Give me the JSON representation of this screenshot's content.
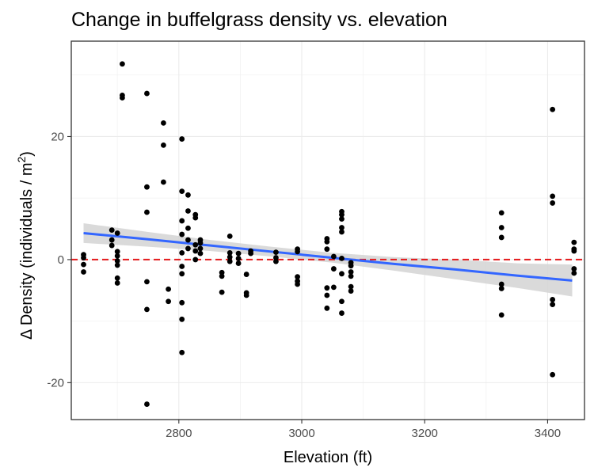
{
  "chart_data": {
    "type": "scatter",
    "title": "Change in buffelgrass density vs. elevation",
    "xlabel": "Elevation (ft)",
    "ylabel_prefix": "Δ Density (individuals / m",
    "ylabel_exponent": "2",
    "ylabel_suffix": ")",
    "xlim": [
      2625,
      3460
    ],
    "ylim": [
      -26,
      35.5
    ],
    "x_ticks": [
      2800,
      3000,
      3200,
      3400
    ],
    "x_tick_labels": [
      "2800",
      "3000",
      "3200",
      "3400"
    ],
    "y_ticks": [
      -20,
      0,
      20
    ],
    "y_tick_labels": [
      "-20",
      "0",
      "20"
    ],
    "grid": true,
    "reference_line": {
      "y": 0,
      "color": "#e41a1c",
      "style": "dashed"
    },
    "trend": {
      "method": "linear",
      "color": "#3366ff",
      "band_color": "#d3d3d3",
      "x": [
        2645,
        2750,
        2850,
        2950,
        3050,
        3150,
        3250,
        3350,
        3440
      ],
      "y": [
        4.3,
        3.3,
        2.3,
        1.3,
        0.3,
        -0.7,
        -1.6,
        -2.6,
        -3.4
      ],
      "lower": [
        2.7,
        2.1,
        1.4,
        0.5,
        -0.5,
        -1.8,
        -3.2,
        -4.6,
        -6.0
      ],
      "upper": [
        5.9,
        4.5,
        3.2,
        2.1,
        1.1,
        0.4,
        0.0,
        -0.6,
        -0.8
      ]
    },
    "points": [
      {
        "x": 2645,
        "y": 0.8
      },
      {
        "x": 2645,
        "y": 0.3
      },
      {
        "x": 2645,
        "y": -0.8
      },
      {
        "x": 2645,
        "y": -2.0
      },
      {
        "x": 2691,
        "y": 4.8
      },
      {
        "x": 2691,
        "y": 3.2
      },
      {
        "x": 2691,
        "y": 2.3
      },
      {
        "x": 2700,
        "y": 4.3
      },
      {
        "x": 2700,
        "y": 1.3
      },
      {
        "x": 2700,
        "y": 0.6
      },
      {
        "x": 2700,
        "y": -0.2
      },
      {
        "x": 2700,
        "y": -0.9
      },
      {
        "x": 2700,
        "y": -3.0
      },
      {
        "x": 2700,
        "y": -3.8
      },
      {
        "x": 2708,
        "y": 31.8
      },
      {
        "x": 2708,
        "y": 26.7
      },
      {
        "x": 2708,
        "y": 26.3
      },
      {
        "x": 2748,
        "y": 27.0
      },
      {
        "x": 2748,
        "y": 11.8
      },
      {
        "x": 2748,
        "y": 7.7
      },
      {
        "x": 2748,
        "y": -3.6
      },
      {
        "x": 2748,
        "y": -8.1
      },
      {
        "x": 2748,
        "y": -23.5
      },
      {
        "x": 2775,
        "y": 22.2
      },
      {
        "x": 2775,
        "y": 18.6
      },
      {
        "x": 2775,
        "y": 12.6
      },
      {
        "x": 2783,
        "y": -4.8
      },
      {
        "x": 2783,
        "y": -6.8
      },
      {
        "x": 2805,
        "y": 19.6
      },
      {
        "x": 2805,
        "y": 11.1
      },
      {
        "x": 2805,
        "y": 6.3
      },
      {
        "x": 2805,
        "y": 4.1
      },
      {
        "x": 2805,
        "y": 1.1
      },
      {
        "x": 2805,
        "y": -1.1
      },
      {
        "x": 2805,
        "y": -2.3
      },
      {
        "x": 2805,
        "y": -7.0
      },
      {
        "x": 2805,
        "y": -9.7
      },
      {
        "x": 2805,
        "y": -15.1
      },
      {
        "x": 2815,
        "y": 10.5
      },
      {
        "x": 2815,
        "y": 7.9
      },
      {
        "x": 2815,
        "y": 5.1
      },
      {
        "x": 2815,
        "y": 3.2
      },
      {
        "x": 2815,
        "y": 1.8
      },
      {
        "x": 2827,
        "y": 7.3
      },
      {
        "x": 2827,
        "y": 6.8
      },
      {
        "x": 2827,
        "y": 2.4
      },
      {
        "x": 2827,
        "y": 1.4
      },
      {
        "x": 2827,
        "y": 0.0
      },
      {
        "x": 2835,
        "y": 3.2
      },
      {
        "x": 2835,
        "y": 2.7
      },
      {
        "x": 2835,
        "y": 1.8
      },
      {
        "x": 2835,
        "y": 1.0
      },
      {
        "x": 2870,
        "y": -2.1
      },
      {
        "x": 2870,
        "y": -2.7
      },
      {
        "x": 2870,
        "y": -5.3
      },
      {
        "x": 2883,
        "y": 3.8
      },
      {
        "x": 2883,
        "y": 1.1
      },
      {
        "x": 2883,
        "y": 0.4
      },
      {
        "x": 2883,
        "y": -0.3
      },
      {
        "x": 2897,
        "y": 1.0
      },
      {
        "x": 2897,
        "y": 0.2
      },
      {
        "x": 2897,
        "y": -0.6
      },
      {
        "x": 2910,
        "y": -2.4
      },
      {
        "x": 2910,
        "y": -5.4
      },
      {
        "x": 2910,
        "y": -5.8
      },
      {
        "x": 2917,
        "y": 1.4
      },
      {
        "x": 2917,
        "y": 1.0
      },
      {
        "x": 2958,
        "y": 1.2
      },
      {
        "x": 2958,
        "y": 0.3
      },
      {
        "x": 2958,
        "y": -0.3
      },
      {
        "x": 2993,
        "y": 1.7
      },
      {
        "x": 2993,
        "y": 1.3
      },
      {
        "x": 2993,
        "y": -2.8
      },
      {
        "x": 2993,
        "y": -3.5
      },
      {
        "x": 2993,
        "y": -4.0
      },
      {
        "x": 3041,
        "y": 3.4
      },
      {
        "x": 3041,
        "y": 2.9
      },
      {
        "x": 3041,
        "y": 1.7
      },
      {
        "x": 3041,
        "y": -4.6
      },
      {
        "x": 3041,
        "y": -5.8
      },
      {
        "x": 3041,
        "y": -7.9
      },
      {
        "x": 3052,
        "y": 0.5
      },
      {
        "x": 3052,
        "y": -1.5
      },
      {
        "x": 3052,
        "y": -4.5
      },
      {
        "x": 3065,
        "y": 7.8
      },
      {
        "x": 3065,
        "y": 7.3
      },
      {
        "x": 3065,
        "y": 6.6
      },
      {
        "x": 3065,
        "y": 5.2
      },
      {
        "x": 3065,
        "y": 4.5
      },
      {
        "x": 3065,
        "y": 0.2
      },
      {
        "x": 3065,
        "y": -2.3
      },
      {
        "x": 3065,
        "y": -6.8
      },
      {
        "x": 3065,
        "y": -8.7
      },
      {
        "x": 3080,
        "y": -0.5
      },
      {
        "x": 3080,
        "y": -1.0
      },
      {
        "x": 3080,
        "y": -2.0
      },
      {
        "x": 3080,
        "y": -2.7
      },
      {
        "x": 3080,
        "y": -4.4
      },
      {
        "x": 3080,
        "y": -5.1
      },
      {
        "x": 3325,
        "y": 7.6
      },
      {
        "x": 3325,
        "y": 5.2
      },
      {
        "x": 3325,
        "y": 3.6
      },
      {
        "x": 3325,
        "y": -4.0
      },
      {
        "x": 3325,
        "y": -4.7
      },
      {
        "x": 3325,
        "y": -9.0
      },
      {
        "x": 3408,
        "y": 24.4
      },
      {
        "x": 3408,
        "y": 10.3
      },
      {
        "x": 3408,
        "y": 9.2
      },
      {
        "x": 3408,
        "y": -6.5
      },
      {
        "x": 3408,
        "y": -7.3
      },
      {
        "x": 3408,
        "y": -18.7
      },
      {
        "x": 3443,
        "y": 2.8
      },
      {
        "x": 3443,
        "y": 1.7
      },
      {
        "x": 3443,
        "y": 1.4
      },
      {
        "x": 3443,
        "y": -1.5
      },
      {
        "x": 3443,
        "y": -2.2
      }
    ]
  }
}
